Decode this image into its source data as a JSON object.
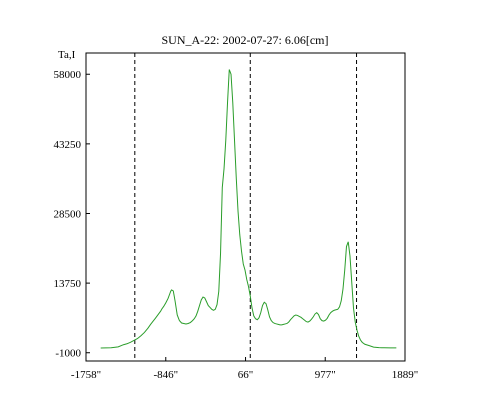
{
  "chart_data": {
    "type": "line",
    "title": "SUN_A-22: 2002-07-27: 6.06[cm]",
    "ylabel": "Ta,I",
    "xlabel": "",
    "xlim": [
      -1758,
      1889
    ],
    "ylim": [
      -2750,
      62500
    ],
    "x_tick_labels": [
      {
        "value": -1758,
        "label": "-1758\""
      },
      {
        "value": -846,
        "label": "-846\""
      },
      {
        "value": 66,
        "label": "66\""
      },
      {
        "value": 977,
        "label": "977\""
      },
      {
        "value": 1889,
        "label": "1889\""
      }
    ],
    "y_ticks": [
      -1000,
      13750,
      28500,
      43250,
      58000
    ],
    "dashed_vlines": [
      -1200,
      120,
      1335
    ],
    "series": [
      {
        "color": "#2a9d2a",
        "x": [
          -1590,
          -1470,
          -1390,
          -1330,
          -1290,
          -1250,
          -1210,
          -1170,
          -1130,
          -1090,
          -1050,
          -1020,
          -990,
          -965,
          -945,
          -925,
          -905,
          -890,
          -870,
          -845,
          -820,
          -800,
          -790,
          -780,
          -760,
          -740,
          -715,
          -690,
          -665,
          -640,
          -615,
          -590,
          -565,
          -540,
          -520,
          -500,
          -480,
          -460,
          -440,
          -420,
          -400,
          -380,
          -360,
          -340,
          -320,
          -300,
          -280,
          -260,
          -240,
          -220,
          -200,
          -180,
          -160,
          -140,
          -120,
          -100,
          -80,
          -60,
          -40,
          -20,
          0,
          20,
          40,
          60,
          80,
          100,
          120,
          140,
          160,
          180,
          200,
          220,
          240,
          260,
          280,
          300,
          320,
          340,
          360,
          380,
          400,
          420,
          440,
          460,
          480,
          500,
          520,
          540,
          560,
          580,
          600,
          620,
          640,
          660,
          680,
          700,
          720,
          740,
          760,
          780,
          800,
          820,
          840,
          860,
          880,
          900,
          920,
          940,
          960,
          980,
          1000,
          1020,
          1040,
          1060,
          1080,
          1100,
          1120,
          1140,
          1160,
          1180,
          1200,
          1220,
          1240,
          1260,
          1280,
          1300,
          1320,
          1340,
          1360,
          1380,
          1400,
          1430,
          1480,
          1530,
          1590,
          1650,
          1720,
          1790
        ],
        "y": [
          0,
          50,
          250,
          700,
          900,
          1200,
          1600,
          2000,
          2600,
          3300,
          4200,
          5000,
          5700,
          6300,
          6800,
          7300,
          7800,
          8300,
          8800,
          9600,
          10500,
          11500,
          12000,
          12300,
          12100,
          10000,
          7000,
          5800,
          5300,
          5200,
          5100,
          5200,
          5400,
          5800,
          6200,
          6800,
          7800,
          9000,
          10200,
          10800,
          10600,
          9800,
          9000,
          8600,
          8200,
          8000,
          8200,
          9200,
          12000,
          20000,
          34000,
          38000,
          44000,
          52000,
          59000,
          58000,
          52000,
          44000,
          36000,
          29000,
          24000,
          20500,
          17800,
          16500,
          14500,
          13000,
          11000,
          8500,
          6800,
          6200,
          6000,
          6400,
          7500,
          9000,
          9700,
          9400,
          8100,
          6600,
          5800,
          5400,
          5200,
          5100,
          5000,
          4900,
          4900,
          5000,
          5100,
          5200,
          5500,
          6000,
          6400,
          6800,
          7000,
          6900,
          6700,
          6500,
          6200,
          5900,
          5600,
          5500,
          5700,
          6100,
          6600,
          7200,
          7500,
          7100,
          6200,
          5800,
          5700,
          5900,
          6300,
          7000,
          7500,
          7800,
          8000,
          8100,
          8200,
          8700,
          10000,
          12500,
          16500,
          21500,
          22500,
          19500,
          14000,
          8500,
          5500,
          3800,
          2500,
          1700,
          1200,
          800,
          500,
          200,
          80,
          50,
          30,
          20
        ]
      }
    ]
  }
}
